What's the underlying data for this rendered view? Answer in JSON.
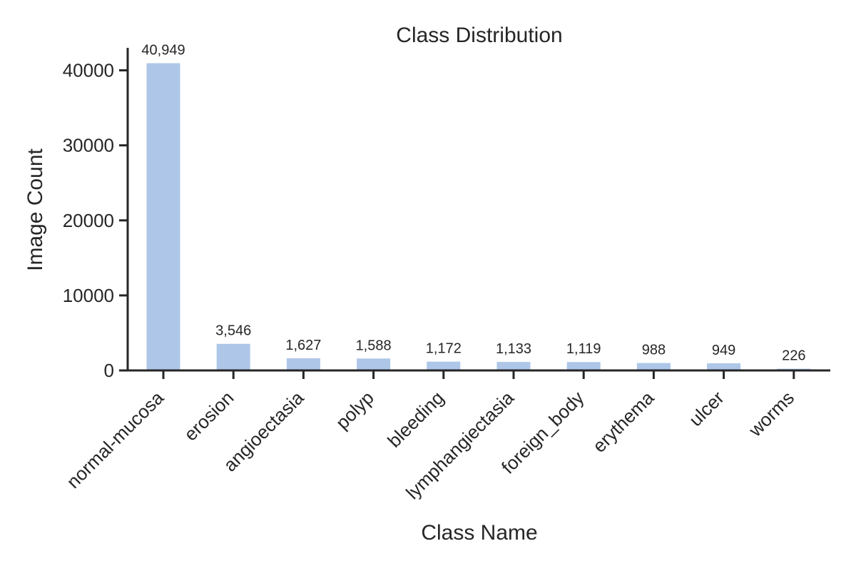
{
  "chart_data": {
    "type": "bar",
    "title": "Class Distribution",
    "xlabel": "Class Name",
    "ylabel": "Image Count",
    "categories": [
      "normal-mucosa",
      "erosion",
      "angioectasia",
      "polyp",
      "bleeding",
      "lymphangiectasia",
      "foreign_body",
      "erythema",
      "ulcer",
      "worms"
    ],
    "values": [
      40949,
      3546,
      1627,
      1588,
      1172,
      1133,
      1119,
      988,
      949,
      226
    ],
    "value_labels": [
      "40,949",
      "3,546",
      "1,627",
      "1,588",
      "1,172",
      "1,133",
      "1,119",
      "988",
      "949",
      "226"
    ],
    "ylim": [
      0,
      43000
    ],
    "yticks": [
      0,
      10000,
      20000,
      30000,
      40000
    ],
    "ytick_labels": [
      "0",
      "10000",
      "20000",
      "30000",
      "40000"
    ],
    "grid": false,
    "legend": "none",
    "colors": {
      "bar": "#aec7e8",
      "axis": "#262626",
      "text": "#262626"
    }
  }
}
